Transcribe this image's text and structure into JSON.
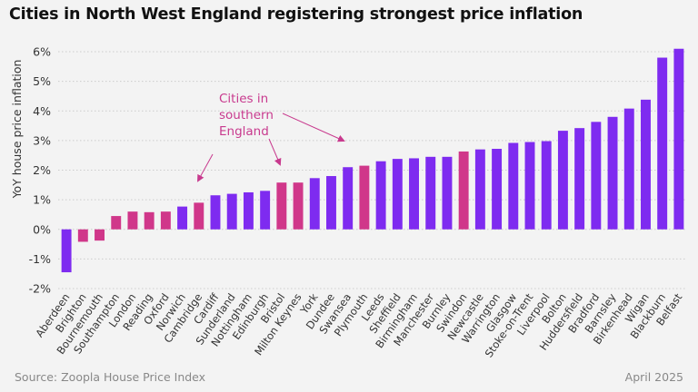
{
  "title": "Cities in North West England registering strongest price inflation",
  "source": "Source: Zoopla House Price Index",
  "date": "April 2025",
  "colors": {
    "purple": "#7e2bf0",
    "pink": "#d0378a",
    "annotation": "#c83a8e",
    "text": "#333333",
    "grid": "#cccccc"
  },
  "annotation": {
    "lines": [
      "Cities in",
      "southern",
      "England"
    ]
  },
  "chart_data": {
    "type": "bar",
    "ylabel": "YoY house price inflation",
    "ylim": [
      -2,
      6
    ],
    "yticks": [
      -2,
      -1,
      0,
      1,
      2,
      3,
      4,
      5,
      6
    ],
    "ytick_labels": [
      "-2%",
      "-1%",
      "0%",
      "1%",
      "2%",
      "3%",
      "4%",
      "5%",
      "6%"
    ],
    "categories": [
      "Aberdeen",
      "Brighton",
      "Bournemouth",
      "Southampton",
      "London",
      "Reading",
      "Oxford",
      "Norwich",
      "Cambridge",
      "Cardiff",
      "Sunderland",
      "Nottingham",
      "Edinburgh",
      "Bristol",
      "Milton Keynes",
      "York",
      "Dundee",
      "Swansea",
      "Plymouth",
      "Leeds",
      "Sheffield",
      "Birmingham",
      "Manchester",
      "Burnley",
      "Swindon",
      "Newcastle",
      "Warrington",
      "Glasgow",
      "Stoke-on-Trent",
      "Liverpool",
      "Bolton",
      "Huddersfield",
      "Bradford",
      "Barnsley",
      "Birkenhead",
      "Wigan",
      "Blackburn",
      "Belfast"
    ],
    "values": [
      -1.45,
      -0.42,
      -0.38,
      0.45,
      0.6,
      0.58,
      0.6,
      0.77,
      0.9,
      1.15,
      1.2,
      1.25,
      1.3,
      1.58,
      1.58,
      1.73,
      1.8,
      2.1,
      2.15,
      2.3,
      2.38,
      2.4,
      2.45,
      2.45,
      2.63,
      2.7,
      2.72,
      2.92,
      2.95,
      2.98,
      3.33,
      3.42,
      3.63,
      3.8,
      4.08,
      4.38,
      5.8,
      6.1
    ],
    "highlight": [
      "Brighton",
      "Bournemouth",
      "Southampton",
      "London",
      "Reading",
      "Oxford",
      "Cambridge",
      "Bristol",
      "Milton Keynes",
      "Plymouth",
      "Swindon"
    ]
  }
}
